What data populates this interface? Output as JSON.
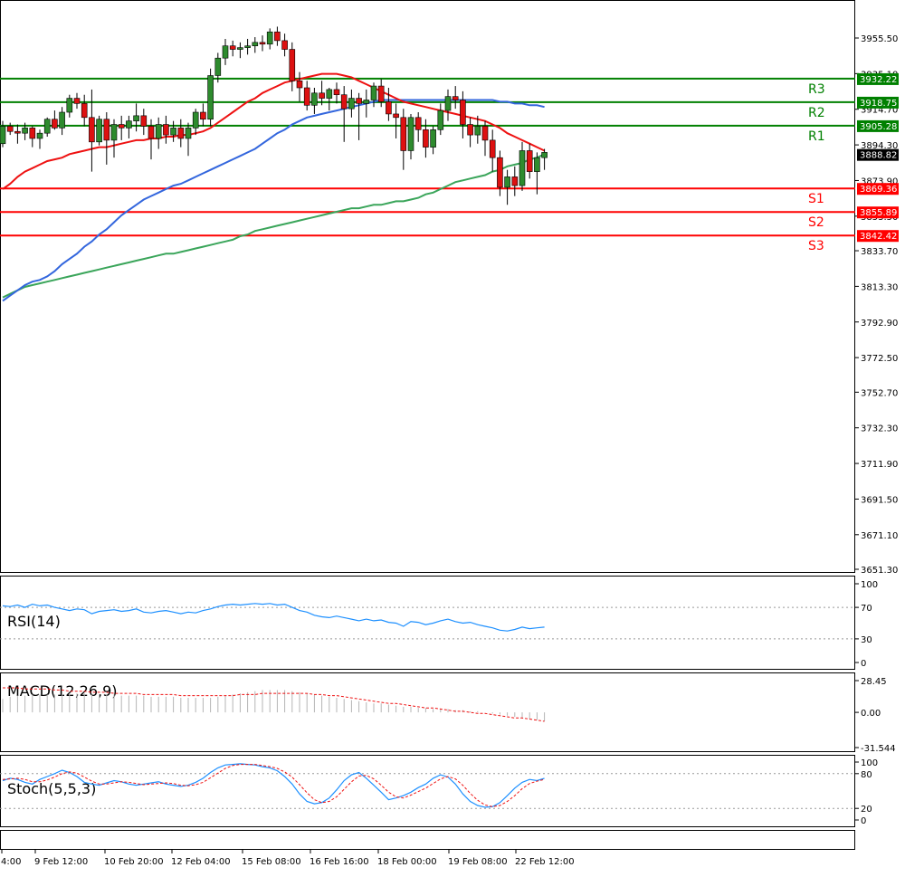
{
  "chart_data": {
    "type": "candlestick",
    "price_axis": {
      "ticks": [
        "3955.50",
        "3935.10",
        "3914.70",
        "3894.30",
        "3873.90",
        "3853.50",
        "3833.70",
        "3813.30",
        "3792.90",
        "3772.50",
        "3752.70",
        "3732.30",
        "3711.90",
        "3691.50",
        "3671.10",
        "3651.30"
      ],
      "ylim": [
        3651.3,
        3955.5
      ]
    },
    "time_axis": {
      "labels": [
        "4:00",
        "9 Feb 12:00",
        "10 Feb 20:00",
        "12 Feb 04:00",
        "15 Feb 08:00",
        "16 Feb 16:00",
        "18 Feb 00:00",
        "19 Feb 08:00",
        "22 Feb 12:00"
      ]
    },
    "levels": [
      {
        "name": "R3",
        "value": "3932.22",
        "color": "#008000"
      },
      {
        "name": "R2",
        "value": "3918.75",
        "color": "#008000"
      },
      {
        "name": "R1",
        "value": "3905.28",
        "color": "#008000"
      },
      {
        "name": "S1",
        "value": "3869.36",
        "color": "#ff0000"
      },
      {
        "name": "S2",
        "value": "3855.89",
        "color": "#ff0000"
      },
      {
        "name": "S3",
        "value": "3842.42",
        "color": "#ff0000"
      }
    ],
    "current_price": "3888.82",
    "colors": {
      "bull": "#2e8b2e",
      "bear": "#dd1111",
      "ma_fast": "#ee1111",
      "ma_mid": "#3366dd",
      "ma_slow": "#3aa55a",
      "indicator": "#1e90ff",
      "signal": "#ee1111"
    },
    "candles": [
      [
        3895,
        3908,
        3893,
        3905
      ],
      [
        3905,
        3907,
        3900,
        3902
      ],
      [
        3902,
        3906,
        3895,
        3901
      ],
      [
        3901,
        3907,
        3897,
        3904
      ],
      [
        3904,
        3905,
        3893,
        3898
      ],
      [
        3898,
        3903,
        3892,
        3901
      ],
      [
        3901,
        3910,
        3899,
        3909
      ],
      [
        3909,
        3914,
        3903,
        3904
      ],
      [
        3904,
        3916,
        3900,
        3913
      ],
      [
        3913,
        3923,
        3910,
        3921
      ],
      [
        3921,
        3924,
        3915,
        3918
      ],
      [
        3918,
        3923,
        3905,
        3910
      ],
      [
        3910,
        3926,
        3879,
        3896
      ],
      [
        3896,
        3911,
        3894,
        3909
      ],
      [
        3909,
        3913,
        3883,
        3897
      ],
      [
        3897,
        3909,
        3887,
        3906
      ],
      [
        3906,
        3911,
        3897,
        3904
      ],
      [
        3904,
        3911,
        3898,
        3908
      ],
      [
        3908,
        3918,
        3902,
        3911
      ],
      [
        3911,
        3915,
        3900,
        3905
      ],
      [
        3905,
        3909,
        3886,
        3898
      ],
      [
        3898,
        3910,
        3892,
        3906
      ],
      [
        3906,
        3911,
        3895,
        3900
      ],
      [
        3900,
        3908,
        3896,
        3904
      ],
      [
        3904,
        3909,
        3893,
        3898
      ],
      [
        3898,
        3907,
        3888,
        3904
      ],
      [
        3904,
        3915,
        3900,
        3913
      ],
      [
        3913,
        3918,
        3905,
        3909
      ],
      [
        3909,
        3938,
        3905,
        3934
      ],
      [
        3934,
        3947,
        3930,
        3944
      ],
      [
        3944,
        3955,
        3940,
        3951
      ],
      [
        3951,
        3954,
        3945,
        3949
      ],
      [
        3949,
        3953,
        3944,
        3950
      ],
      [
        3950,
        3955,
        3946,
        3951
      ],
      [
        3951,
        3956,
        3947,
        3953
      ],
      [
        3953,
        3957,
        3948,
        3952
      ],
      [
        3952,
        3961,
        3949,
        3959
      ],
      [
        3959,
        3962,
        3951,
        3954
      ],
      [
        3954,
        3958,
        3945,
        3949
      ],
      [
        3949,
        3953,
        3925,
        3931
      ],
      [
        3931,
        3936,
        3919,
        3927
      ],
      [
        3927,
        3931,
        3914,
        3917
      ],
      [
        3917,
        3927,
        3912,
        3924
      ],
      [
        3924,
        3931,
        3917,
        3921
      ],
      [
        3921,
        3927,
        3914,
        3926
      ],
      [
        3926,
        3930,
        3918,
        3923
      ],
      [
        3923,
        3928,
        3896,
        3915
      ],
      [
        3915,
        3926,
        3910,
        3921
      ],
      [
        3921,
        3924,
        3897,
        3918
      ],
      [
        3918,
        3926,
        3910,
        3920
      ],
      [
        3920,
        3930,
        3916,
        3928
      ],
      [
        3928,
        3932,
        3916,
        3919
      ],
      [
        3919,
        3927,
        3908,
        3912
      ],
      [
        3912,
        3918,
        3898,
        3910
      ],
      [
        3910,
        3915,
        3880,
        3891
      ],
      [
        3891,
        3912,
        3886,
        3910
      ],
      [
        3910,
        3913,
        3896,
        3903
      ],
      [
        3903,
        3909,
        3887,
        3893
      ],
      [
        3893,
        3905,
        3889,
        3903
      ],
      [
        3903,
        3918,
        3900,
        3914
      ],
      [
        3914,
        3926,
        3908,
        3922
      ],
      [
        3922,
        3928,
        3915,
        3920
      ],
      [
        3920,
        3925,
        3898,
        3906
      ],
      [
        3906,
        3910,
        3893,
        3900
      ],
      [
        3900,
        3911,
        3895,
        3905
      ],
      [
        3905,
        3908,
        3888,
        3897
      ],
      [
        3897,
        3903,
        3879,
        3887
      ],
      [
        3887,
        3891,
        3865,
        3870
      ],
      [
        3870,
        3880,
        3860,
        3876
      ],
      [
        3876,
        3882,
        3865,
        3871
      ],
      [
        3871,
        3896,
        3868,
        3891
      ],
      [
        3891,
        3895,
        3875,
        3879
      ],
      [
        3879,
        3890,
        3866,
        3887
      ],
      [
        3887,
        3892,
        3880,
        3890
      ]
    ],
    "ma_fast": [
      3869,
      3872,
      3876,
      3879,
      3881,
      3883,
      3885,
      3886,
      3887,
      3889,
      3890,
      3891,
      3892,
      3893,
      3893,
      3894,
      3895,
      3896,
      3897,
      3897,
      3898,
      3898,
      3899,
      3899,
      3900,
      3900,
      3901,
      3902,
      3904,
      3907,
      3910,
      3913,
      3916,
      3919,
      3921,
      3924,
      3926,
      3928,
      3930,
      3931,
      3932,
      3933,
      3934,
      3935,
      3935,
      3935,
      3934,
      3933,
      3931,
      3929,
      3927,
      3925,
      3923,
      3921,
      3919,
      3918,
      3917,
      3916,
      3915,
      3914,
      3913,
      3912,
      3911,
      3910,
      3909,
      3908,
      3906,
      3904,
      3901,
      3899,
      3897,
      3895,
      3893,
      3891
    ],
    "ma_mid": [
      3805,
      3808,
      3811,
      3814,
      3816,
      3817,
      3819,
      3822,
      3826,
      3829,
      3832,
      3836,
      3839,
      3843,
      3846,
      3850,
      3854,
      3857,
      3860,
      3863,
      3865,
      3867,
      3869,
      3871,
      3872,
      3874,
      3876,
      3878,
      3880,
      3882,
      3884,
      3886,
      3888,
      3890,
      3892,
      3895,
      3898,
      3901,
      3903,
      3906,
      3908,
      3910,
      3911,
      3912,
      3913,
      3914,
      3915,
      3916,
      3917,
      3918,
      3919,
      3920,
      3920,
      3920,
      3920,
      3920,
      3920,
      3920,
      3920,
      3920,
      3920,
      3920,
      3920,
      3920,
      3920,
      3920,
      3920,
      3919,
      3919,
      3918,
      3918,
      3917,
      3917,
      3916
    ],
    "ma_slow": [
      3807,
      3809,
      3811,
      3813,
      3814,
      3815,
      3816,
      3817,
      3818,
      3819,
      3820,
      3821,
      3822,
      3823,
      3824,
      3825,
      3826,
      3827,
      3828,
      3829,
      3830,
      3831,
      3832,
      3832,
      3833,
      3834,
      3835,
      3836,
      3837,
      3838,
      3839,
      3840,
      3842,
      3843,
      3845,
      3846,
      3847,
      3848,
      3849,
      3850,
      3851,
      3852,
      3853,
      3854,
      3855,
      3856,
      3857,
      3858,
      3858,
      3859,
      3860,
      3860,
      3861,
      3862,
      3862,
      3863,
      3864,
      3866,
      3867,
      3869,
      3871,
      3873,
      3874,
      3875,
      3876,
      3877,
      3879,
      3880,
      3882,
      3883,
      3884,
      3886,
      3887,
      3889
    ],
    "rsi": {
      "label": "RSI(14)",
      "ticks": [
        "100",
        "70",
        "30",
        "0"
      ],
      "values": [
        72,
        71,
        73,
        70,
        74,
        72,
        73,
        70,
        68,
        66,
        68,
        67,
        62,
        65,
        66,
        67,
        65,
        66,
        68,
        64,
        63,
        65,
        66,
        64,
        62,
        64,
        63,
        66,
        68,
        71,
        73,
        74,
        73,
        74,
        75,
        74,
        75,
        73,
        74,
        70,
        66,
        64,
        60,
        58,
        57,
        59,
        57,
        55,
        53,
        55,
        53,
        54,
        51,
        50,
        46,
        52,
        51,
        48,
        50,
        53,
        55,
        52,
        50,
        51,
        48,
        46,
        44,
        41,
        40,
        42,
        45,
        43,
        44,
        45
      ]
    },
    "macd": {
      "label": "MACD(12,26,9)",
      "ticks": [
        "28.45",
        "0.00",
        "-31.544"
      ],
      "hist": [
        12,
        14,
        15,
        15,
        16,
        16,
        16,
        16,
        16,
        17,
        17,
        17,
        16,
        16,
        16,
        16,
        15,
        15,
        15,
        15,
        14,
        14,
        14,
        14,
        13,
        13,
        13,
        13,
        13,
        14,
        15,
        16,
        17,
        18,
        19,
        20,
        20,
        20,
        20,
        19,
        18,
        17,
        16,
        15,
        14,
        13,
        12,
        11,
        10,
        9,
        8,
        8,
        7,
        6,
        5,
        5,
        4,
        4,
        3,
        3,
        3,
        2,
        2,
        1,
        1,
        0,
        -1,
        -2,
        -3,
        -4,
        -5,
        -6,
        -7,
        -8
      ],
      "signal": [
        22,
        22,
        22,
        21,
        21,
        21,
        21,
        20,
        20,
        19,
        19,
        19,
        18,
        18,
        18,
        17,
        17,
        17,
        17,
        16,
        16,
        16,
        16,
        16,
        15,
        15,
        15,
        15,
        15,
        15,
        15,
        15,
        16,
        16,
        16,
        17,
        17,
        17,
        17,
        17,
        17,
        17,
        16,
        16,
        15,
        15,
        14,
        13,
        12,
        11,
        10,
        9,
        8,
        8,
        7,
        6,
        5,
        4,
        4,
        3,
        2,
        1,
        1,
        0,
        -1,
        -1,
        -2,
        -3,
        -4,
        -5,
        -5,
        -6,
        -7,
        -8
      ]
    },
    "stoch": {
      "label": "Stoch(5,5,3)",
      "ticks": [
        "100",
        "80",
        "20",
        "0"
      ],
      "k": [
        68,
        72,
        70,
        65,
        62,
        70,
        75,
        80,
        86,
        82,
        75,
        65,
        62,
        60,
        64,
        68,
        66,
        62,
        60,
        62,
        64,
        66,
        62,
        60,
        58,
        60,
        65,
        72,
        82,
        90,
        95,
        96,
        97,
        96,
        95,
        92,
        90,
        85,
        75,
        62,
        45,
        32,
        28,
        30,
        38,
        52,
        68,
        78,
        82,
        72,
        60,
        48,
        35,
        38,
        42,
        48,
        56,
        62,
        72,
        78,
        74,
        62,
        45,
        32,
        25,
        22,
        23,
        30,
        42,
        55,
        65,
        70,
        68,
        72
      ],
      "d": [
        70,
        71,
        72,
        70,
        66,
        66,
        69,
        74,
        80,
        83,
        81,
        74,
        67,
        62,
        62,
        64,
        66,
        65,
        63,
        61,
        62,
        63,
        64,
        63,
        60,
        59,
        61,
        65,
        73,
        81,
        89,
        94,
        96,
        96,
        96,
        94,
        92,
        89,
        83,
        74,
        61,
        47,
        35,
        30,
        32,
        40,
        53,
        66,
        76,
        77,
        71,
        60,
        48,
        40,
        38,
        43,
        49,
        55,
        63,
        71,
        75,
        71,
        60,
        46,
        34,
        26,
        23,
        25,
        32,
        42,
        54,
        63,
        67,
        70
      ]
    }
  }
}
